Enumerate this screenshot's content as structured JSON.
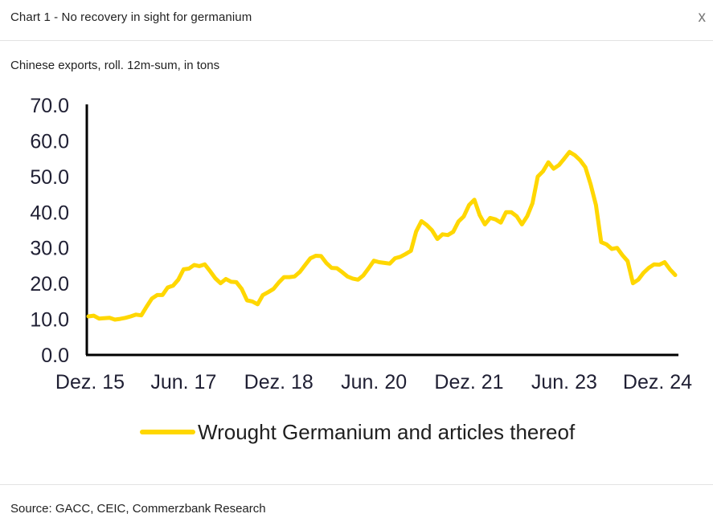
{
  "window": {
    "title": "Chart 1 - No recovery in sight for germanium",
    "close_label": "x"
  },
  "chart_subtitle": "Chinese exports, roll. 12m-sum, in tons",
  "source": "Source: GACC, CEIC, Commerzbank Research",
  "colors": {
    "series": "#FFD700",
    "axis": "#000000",
    "text": "#1f1f33"
  },
  "chart_data": {
    "type": "line",
    "title": "Chart 1 - No recovery in sight for germanium",
    "subtitle": "Chinese exports, roll. 12m-sum, in tons",
    "xlabel": "",
    "ylabel": "",
    "ylim": [
      0,
      70
    ],
    "yticks": [
      "0.0",
      "10.0",
      "20.0",
      "30.0",
      "40.0",
      "50.0",
      "60.0",
      "70.0"
    ],
    "xtick_labels": [
      "Dez. 15",
      "Jun. 17",
      "Dez. 18",
      "Jun. 20",
      "Dez. 21",
      "Jun. 23",
      "Dez. 24"
    ],
    "xtick_months": [
      0,
      18,
      36,
      54,
      72,
      90,
      108
    ],
    "x_start": "Dez. 15",
    "grid": false,
    "legend": "bottom",
    "series": [
      {
        "name": "Wrought Germanium and articles thereof",
        "values": [
          10.8,
          11.0,
          10.2,
          10.3,
          10.4,
          9.9,
          10.1,
          10.4,
          10.8,
          11.3,
          11.1,
          13.5,
          15.8,
          16.8,
          16.8,
          18.9,
          19.4,
          21.1,
          24.0,
          24.2,
          25.2,
          24.9,
          25.4,
          23.5,
          21.5,
          20.1,
          21.3,
          20.5,
          20.4,
          18.5,
          15.3,
          15.0,
          14.2,
          16.8,
          17.6,
          18.5,
          20.3,
          21.8,
          21.8,
          22.0,
          23.3,
          25.2,
          27.1,
          27.8,
          27.7,
          25.8,
          24.4,
          24.3,
          23.2,
          22.0,
          21.4,
          21.1,
          22.3,
          24.3,
          26.4,
          26.0,
          25.8,
          25.6,
          27.1,
          27.5,
          28.3,
          29.2,
          34.6,
          37.5,
          36.4,
          34.9,
          32.5,
          33.8,
          33.6,
          34.5,
          37.4,
          38.8,
          42.0,
          43.5,
          39.2,
          36.6,
          38.4,
          38.0,
          37.1,
          40.0,
          40.0,
          38.9,
          36.6,
          38.9,
          42.5,
          50.0,
          51.5,
          54.0,
          52.2,
          53.2,
          55.0,
          56.9,
          56.0,
          54.6,
          52.6,
          47.8,
          42.0,
          31.6,
          31.0,
          29.7,
          30.0,
          28.0,
          26.3,
          20.1,
          21.1,
          23.0,
          24.4,
          25.4,
          25.3,
          26.0,
          24.0,
          22.4
        ]
      }
    ]
  }
}
